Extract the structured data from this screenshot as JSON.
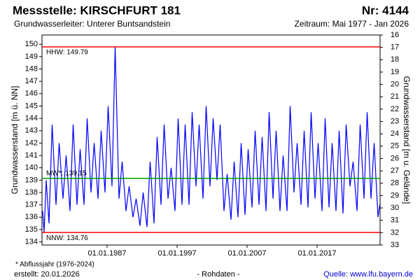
{
  "chart_data": {
    "type": "line",
    "title": "Messstelle: KIRSCHFURT 181",
    "number": "Nr: 4144",
    "subtitle_left": "Grundwasserleiter:   Unterer Buntsandstein",
    "subtitle_right": "Zeitraum: Mai 1977 - Jan 2026",
    "ylabel": "Grundwasserstand [m ü. NN]",
    "y2label": "Grundwasserstand [m u. Gelände]",
    "xlim": [
      1977.7,
      2026.0
    ],
    "xticks": [
      {
        "value": 1987,
        "label": "01.01.1987"
      },
      {
        "value": 1997,
        "label": "01.01.1997"
      },
      {
        "value": 2007,
        "label": "01.01.2007"
      },
      {
        "value": 2017,
        "label": "01.01.2017"
      }
    ],
    "ylim": [
      133.75,
      150.75
    ],
    "yticks": [
      134,
      135,
      136,
      137,
      138,
      139,
      140,
      141,
      142,
      143,
      144,
      145,
      146,
      147,
      148,
      149,
      150
    ],
    "y2lim": [
      33,
      16
    ],
    "y2ticks": [
      16,
      17,
      18,
      19,
      20,
      21,
      22,
      23,
      24,
      25,
      26,
      27,
      28,
      29,
      30,
      31,
      32,
      33
    ],
    "x": [
      1977.8,
      1978.0,
      1978.3,
      1978.7,
      1979.15,
      1979.7,
      1980.15,
      1980.7,
      1981.15,
      1981.7,
      1982.15,
      1982.7,
      1983.15,
      1983.7,
      1984.15,
      1984.7,
      1985.15,
      1985.7,
      1986.15,
      1986.7,
      1987.15,
      1987.7,
      1988.15,
      1988.7,
      1989.15,
      1989.7,
      1990.15,
      1990.7,
      1991.15,
      1991.7,
      1992.15,
      1992.7,
      1993.15,
      1993.7,
      1994.15,
      1994.7,
      1995.15,
      1995.7,
      1996.15,
      1996.7,
      1997.15,
      1997.7,
      1998.15,
      1998.7,
      1999.15,
      1999.7,
      2000.15,
      2000.7,
      2001.15,
      2001.7,
      2002.15,
      2002.7,
      2003.15,
      2003.7,
      2004.15,
      2004.7,
      2005.15,
      2005.7,
      2006.15,
      2006.7,
      2007.15,
      2007.7,
      2008.15,
      2008.7,
      2009.15,
      2009.7,
      2010.15,
      2010.7,
      2011.15,
      2011.7,
      2012.15,
      2012.7,
      2013.15,
      2013.7,
      2014.15,
      2014.7,
      2015.15,
      2015.7,
      2016.15,
      2016.7,
      2017.15,
      2017.7,
      2018.15,
      2018.7,
      2019.15,
      2019.7,
      2020.15,
      2020.7,
      2021.15,
      2021.7,
      2022.15,
      2022.7,
      2023.15,
      2023.7,
      2024.15,
      2024.7,
      2025.15,
      2025.7,
      2025.95
    ],
    "series": [
      {
        "color": "#0000ff",
        "values": [
          136.5,
          134.8,
          139,
          135.5,
          143.5,
          137,
          142,
          137.5,
          141,
          136.5,
          143.5,
          137,
          141.5,
          137,
          144,
          138,
          142,
          137.5,
          143,
          138,
          145,
          138.5,
          149.79,
          137.5,
          140.5,
          136.5,
          138.5,
          136,
          137.5,
          135.3,
          138,
          135.2,
          140.5,
          135.5,
          142.5,
          137,
          143.5,
          137.5,
          140,
          136.5,
          144,
          137,
          143.5,
          137,
          144.5,
          138.5,
          143.5,
          137.5,
          145,
          138.5,
          144,
          139,
          143.5,
          136.5,
          139.5,
          135.8,
          140.5,
          136,
          142,
          136.2,
          141.5,
          136.8,
          143,
          137,
          142.5,
          136.5,
          144.5,
          137.5,
          143,
          136.5,
          141,
          136.5,
          145,
          138,
          142,
          137,
          143,
          136.8,
          144.5,
          137.5,
          142,
          136.5,
          144,
          136.8,
          142,
          136.5,
          143,
          136.3,
          143.5,
          138.5,
          140.5,
          136.5,
          143.5,
          137.5,
          144.5,
          137.5,
          142,
          136,
          137
        ]
      }
    ],
    "reference_lines": [
      {
        "label": "HHW: 149.79",
        "value": 149.79,
        "color": "#ff0000"
      },
      {
        "label": "MW*: 139.15",
        "value": 139.15,
        "color": "#00a000"
      },
      {
        "label": "NNW: 134.76",
        "value": 134.76,
        "color": "#ff0000"
      }
    ],
    "notes": [
      "* Abflussjahr (1976-2024)",
      "erstellt:  20.01.2026",
      "- Rohdaten -",
      "Quelle: www.lfu.bayern.de"
    ]
  }
}
